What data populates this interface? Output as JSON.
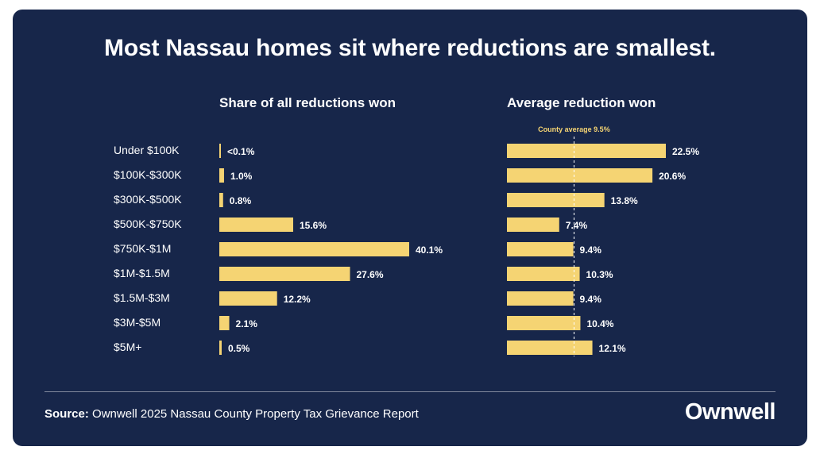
{
  "title": "Most Nassau homes sit where reductions are smallest.",
  "colors": {
    "background": "#17264a",
    "bar": "#f5d473",
    "text": "#ffffff",
    "avg_label": "#f5d473"
  },
  "source_label": "Source:",
  "source_text": "Ownwell 2025 Nassau County Property Tax Grievance Report",
  "logo": "Ownwell",
  "chart_data": [
    {
      "type": "bar",
      "orientation": "horizontal",
      "title": "Share of all reductions won",
      "categories": [
        "Under $100K",
        "$100K-$300K",
        "$300K-$500K",
        "$500K-$750K",
        "$750K-$1M",
        "$1M-$1.5M",
        "$1.5M-$3M",
        "$3M-$5M",
        "$5M+"
      ],
      "values": [
        0.05,
        1.0,
        0.8,
        15.6,
        40.1,
        27.6,
        12.2,
        2.1,
        0.5
      ],
      "labels": [
        "<0.1%",
        "1.0%",
        "0.8%",
        "15.6%",
        "40.1%",
        "27.6%",
        "12.2%",
        "2.1%",
        "0.5%"
      ],
      "xlim": [
        0,
        40.1
      ],
      "grid": false
    },
    {
      "type": "bar",
      "orientation": "horizontal",
      "title": "Average reduction won",
      "categories": [
        "Under $100K",
        "$100K-$300K",
        "$300K-$500K",
        "$500K-$750K",
        "$750K-$1M",
        "$1M-$1.5M",
        "$1.5M-$3M",
        "$3M-$5M",
        "$5M+"
      ],
      "values": [
        22.5,
        20.6,
        13.8,
        7.4,
        9.4,
        10.3,
        9.4,
        10.4,
        12.1
      ],
      "labels": [
        "22.5%",
        "20.6%",
        "13.8%",
        "7.4%",
        "9.4%",
        "10.3%",
        "9.4%",
        "10.4%",
        "12.1%"
      ],
      "xlim": [
        0,
        22.5
      ],
      "reference_line": {
        "value": 9.5,
        "label": "County average 9.5%"
      },
      "grid": false
    }
  ]
}
